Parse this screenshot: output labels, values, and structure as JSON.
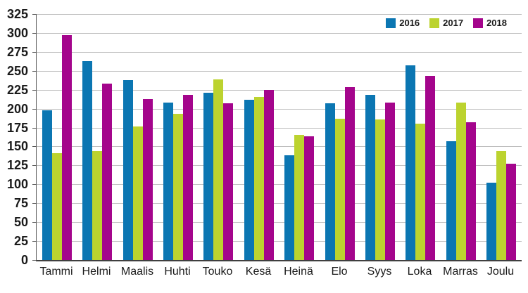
{
  "chart_data": {
    "type": "bar",
    "title": "",
    "xlabel": "",
    "ylabel": "",
    "categories": [
      "Tammi",
      "Helmi",
      "Maalis",
      "Huhti",
      "Touko",
      "Kesä",
      "Heinä",
      "Elo",
      "Syys",
      "Loka",
      "Marras",
      "Joulu"
    ],
    "series": [
      {
        "name": "2016",
        "color": "#0b76b2",
        "values": [
          198,
          263,
          238,
          208,
          221,
          212,
          138,
          207,
          218,
          257,
          157,
          102
        ]
      },
      {
        "name": "2017",
        "color": "#bcd32f",
        "values": [
          141,
          144,
          176,
          193,
          239,
          215,
          165,
          187,
          186,
          180,
          208,
          144
        ]
      },
      {
        "name": "2018",
        "color": "#a4058c",
        "values": [
          297,
          233,
          213,
          218,
          207,
          225,
          163,
          228,
          208,
          243,
          182,
          127
        ]
      }
    ],
    "ylim": [
      0,
      325
    ],
    "yticks": [
      0,
      25,
      50,
      75,
      100,
      125,
      150,
      175,
      200,
      225,
      250,
      275,
      300,
      325
    ],
    "grid": true,
    "legend_position": "top-right"
  },
  "colors": {
    "gridline": "#bfbfbf",
    "axis": "#595959",
    "text": "#1a1a1a",
    "background": "#ffffff"
  }
}
